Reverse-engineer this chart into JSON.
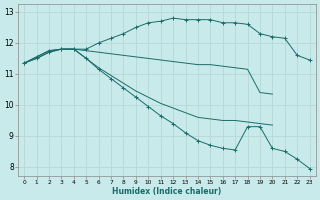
{
  "xlabel": "Humidex (Indice chaleur)",
  "bg_color": "#c8eaea",
  "grid_color": "#b8d8d8",
  "line_color": "#1a6b6b",
  "xlim": [
    -0.5,
    23.5
  ],
  "ylim": [
    7.7,
    13.25
  ],
  "xticks": [
    0,
    1,
    2,
    3,
    4,
    5,
    6,
    7,
    8,
    9,
    10,
    11,
    12,
    13,
    14,
    15,
    16,
    17,
    18,
    19,
    20,
    21,
    22,
    23
  ],
  "yticks": [
    8,
    9,
    10,
    11,
    12,
    13
  ],
  "series": [
    {
      "x": [
        0,
        1,
        2,
        3,
        4,
        5,
        6,
        7,
        8,
        9,
        10,
        11,
        12,
        13,
        14,
        15,
        16,
        17,
        18,
        19,
        20,
        21,
        22,
        23
      ],
      "y": [
        11.35,
        11.55,
        11.75,
        11.8,
        11.8,
        11.8,
        12.0,
        12.15,
        12.3,
        12.5,
        12.65,
        12.7,
        12.8,
        12.75,
        12.75,
        12.75,
        12.65,
        12.65,
        12.6,
        12.3,
        12.2,
        12.15,
        11.6,
        11.45
      ],
      "marker": true
    },
    {
      "x": [
        0,
        1,
        2,
        3,
        4,
        5,
        6,
        7,
        8,
        9,
        10,
        11,
        12,
        13,
        14,
        15,
        16,
        17,
        18,
        19,
        20
      ],
      "y": [
        11.35,
        11.55,
        11.75,
        11.8,
        11.8,
        11.75,
        11.7,
        11.65,
        11.6,
        11.55,
        11.5,
        11.45,
        11.4,
        11.35,
        11.3,
        11.3,
        11.25,
        11.2,
        11.15,
        10.4,
        10.35
      ],
      "marker": false
    },
    {
      "x": [
        0,
        1,
        2,
        3,
        4,
        5,
        6,
        7,
        8,
        9,
        10,
        11,
        12,
        13,
        14,
        15,
        16,
        17,
        18,
        19,
        20
      ],
      "y": [
        11.35,
        11.5,
        11.7,
        11.8,
        11.8,
        11.5,
        11.2,
        10.95,
        10.7,
        10.45,
        10.25,
        10.05,
        9.9,
        9.75,
        9.6,
        9.55,
        9.5,
        9.5,
        9.45,
        9.4,
        9.35
      ],
      "marker": false
    },
    {
      "x": [
        0,
        1,
        2,
        3,
        4,
        5,
        6,
        7,
        8,
        9,
        10,
        11,
        12,
        13,
        14,
        15,
        16,
        17,
        18,
        19,
        20,
        21,
        22,
        23
      ],
      "y": [
        11.35,
        11.5,
        11.7,
        11.8,
        11.8,
        11.5,
        11.15,
        10.85,
        10.55,
        10.25,
        9.95,
        9.65,
        9.4,
        9.1,
        8.85,
        8.7,
        8.6,
        8.55,
        9.3,
        9.3,
        8.6,
        8.5,
        8.25,
        7.95
      ],
      "marker": true
    }
  ]
}
